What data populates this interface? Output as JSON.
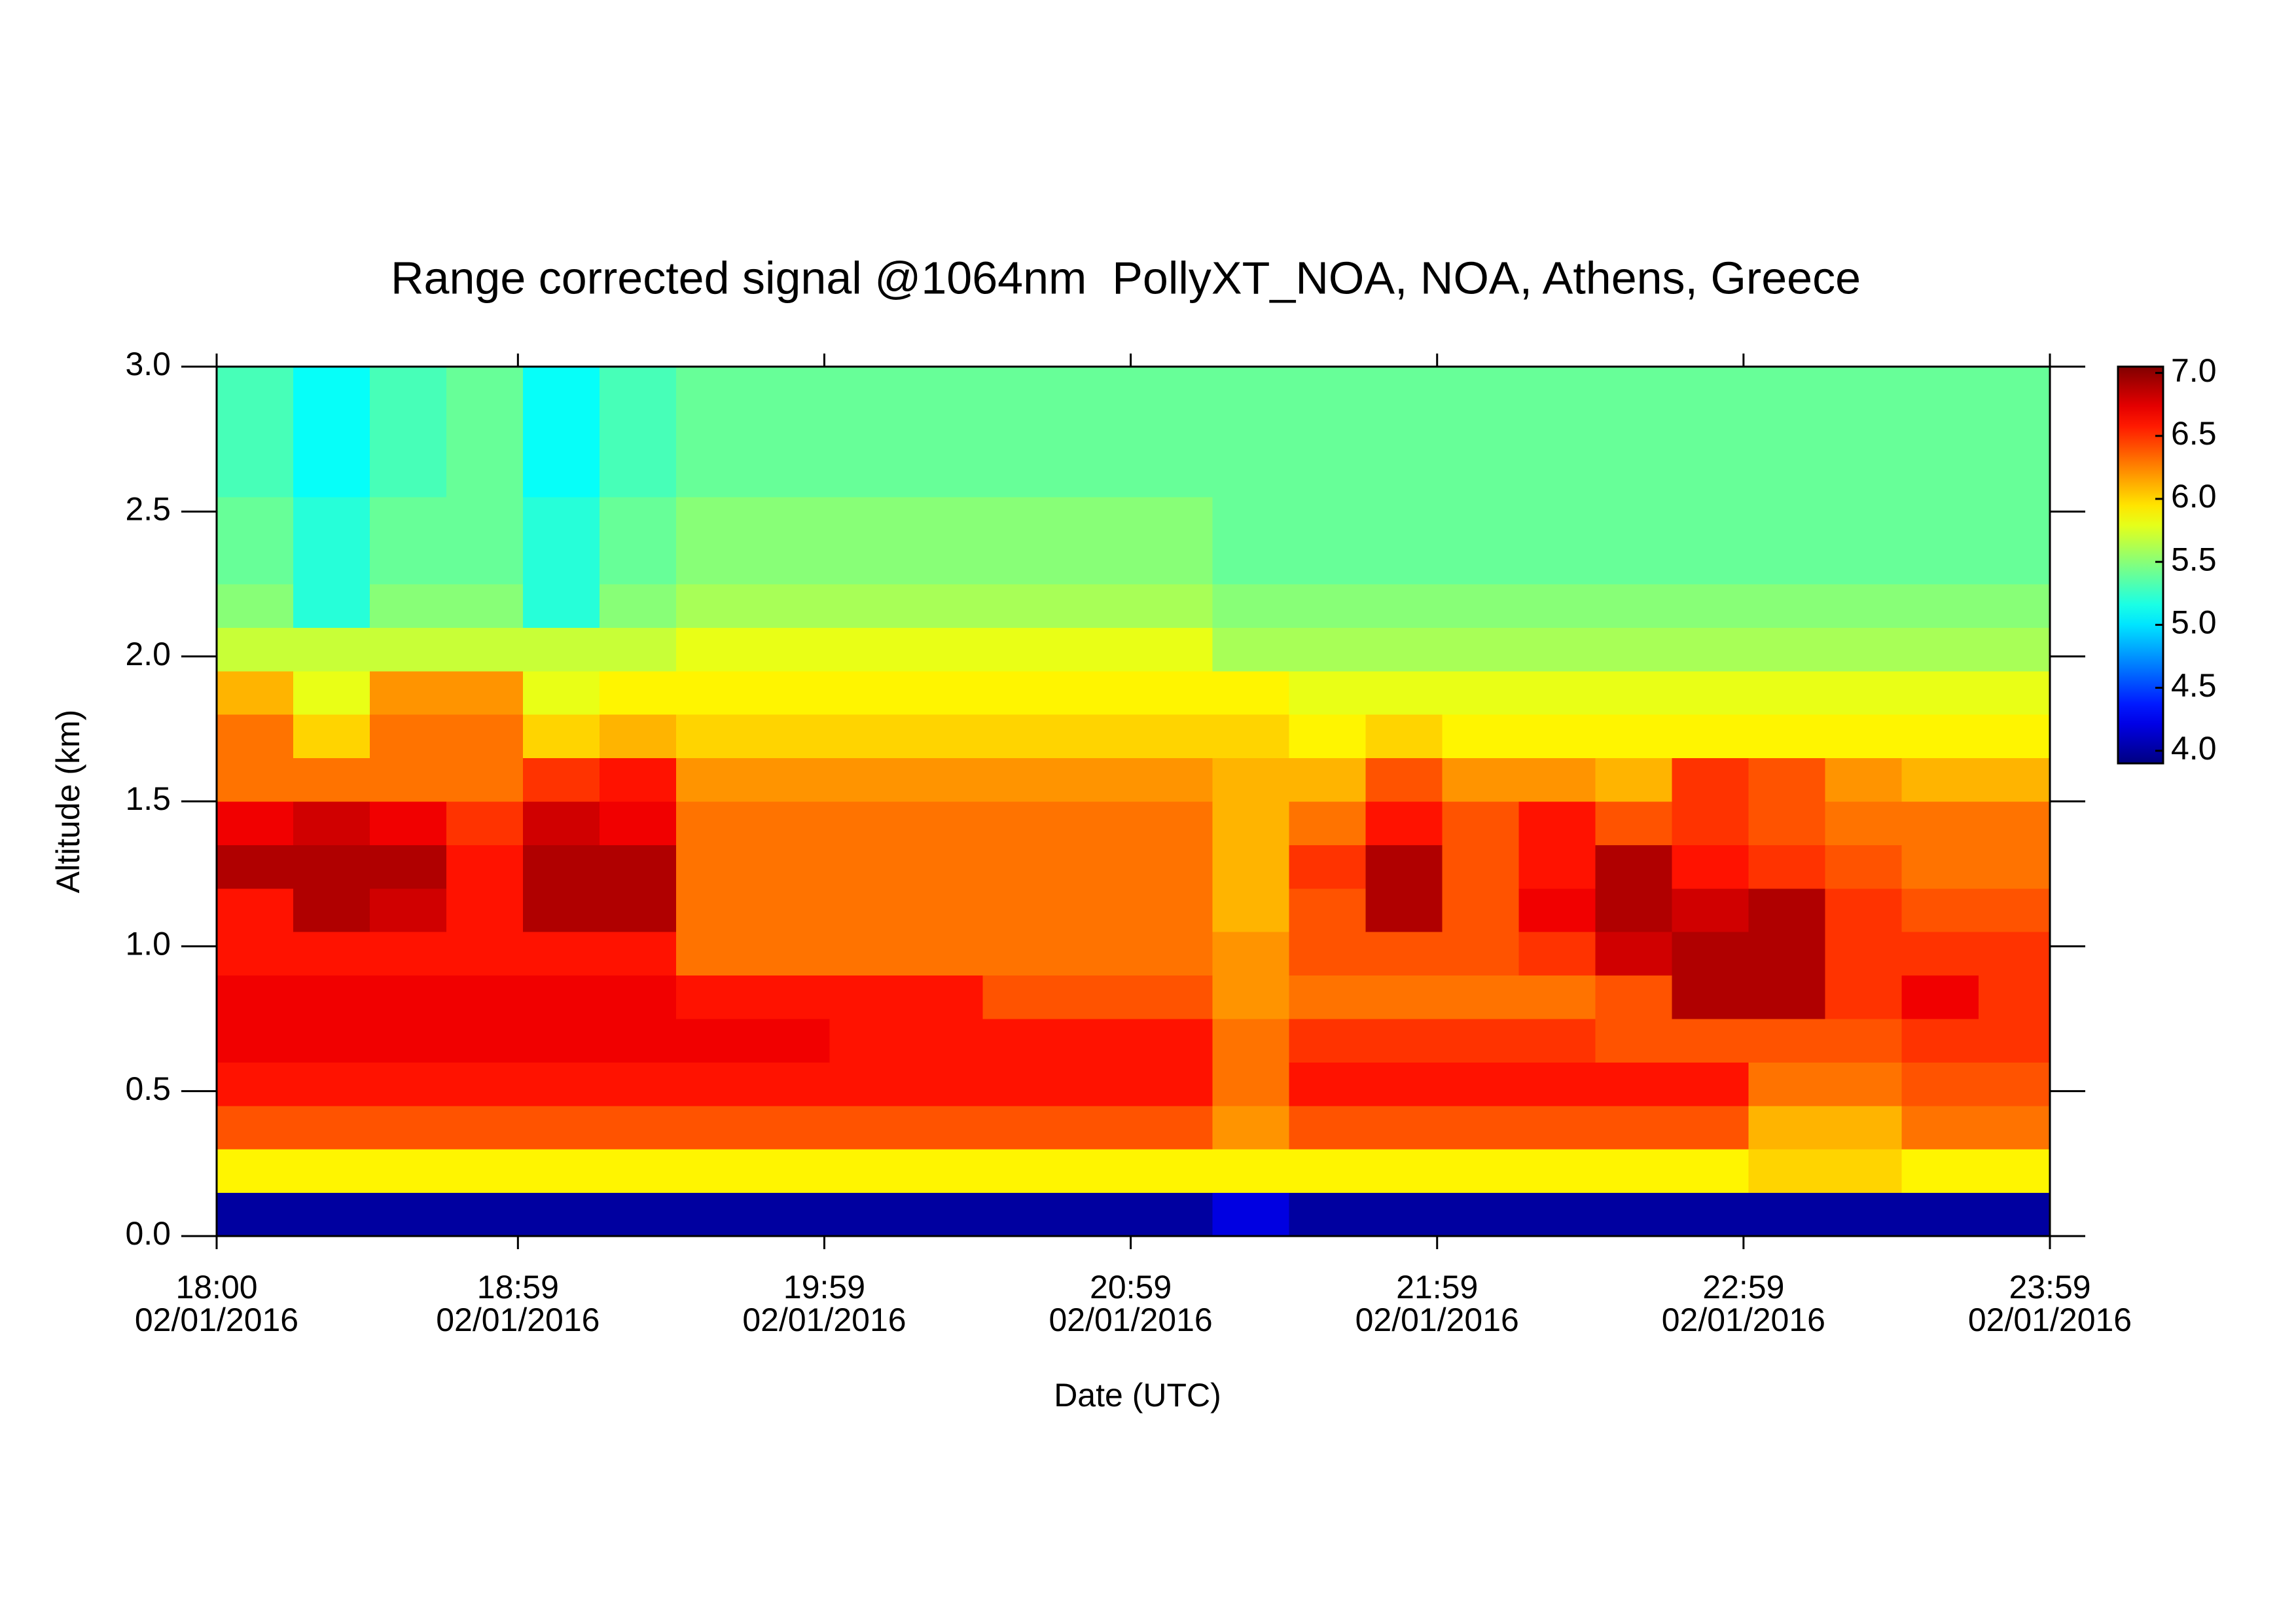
{
  "chart_data": {
    "type": "heatmap",
    "title": "Range corrected signal @1064nm  PollyXT_NOA, NOA, Athens, Greece",
    "xlabel": "Date (UTC)",
    "ylabel": "Altitude (km)",
    "xlim": [
      "18:00",
      "23:59"
    ],
    "xticks": [
      {
        "value": "18:00",
        "label": [
          "18:00",
          "02/01/2016"
        ]
      },
      {
        "value": "18:59",
        "label": [
          "18:59",
          "02/01/2016"
        ]
      },
      {
        "value": "19:59",
        "label": [
          "19:59",
          "02/01/2016"
        ]
      },
      {
        "value": "20:59",
        "label": [
          "20:59",
          "02/01/2016"
        ]
      },
      {
        "value": "21:59",
        "label": [
          "21:59",
          "02/01/2016"
        ]
      },
      {
        "value": "22:59",
        "label": [
          "22:59",
          "02/01/2016"
        ]
      },
      {
        "value": "23:59",
        "label": [
          "23:59",
          "02/01/2016"
        ]
      }
    ],
    "ylim": [
      0,
      3.0
    ],
    "yticks": [
      {
        "value": 0,
        "label": "0.0"
      },
      0.5,
      {
        "value": 1,
        "label": "1.0"
      },
      1.5,
      {
        "value": 2,
        "label": "2.0"
      },
      2.5,
      {
        "value": 3,
        "label": "3.0"
      }
    ],
    "clim": [
      3.9,
      7.05
    ],
    "cticks": [
      {
        "value": 4,
        "label": "4.0"
      },
      4.5,
      {
        "value": 5,
        "label": "5.0"
      },
      5.5,
      {
        "value": 6,
        "label": "6.0"
      },
      6.5,
      {
        "value": 7,
        "label": "7.0"
      }
    ],
    "colormap": "jet",
    "x": [
      "18:00",
      "18:15",
      "18:30",
      "18:45",
      "19:00",
      "19:15",
      "19:30",
      "19:45",
      "20:00",
      "20:15",
      "20:30",
      "20:45",
      "21:00",
      "21:15",
      "21:30",
      "21:45",
      "22:00",
      "22:15",
      "22:30",
      "22:45",
      "23:00",
      "23:15",
      "23:30",
      "23:45"
    ],
    "y": [
      0,
      0.15,
      0.3,
      0.45,
      0.6,
      0.75,
      0.9,
      1.05,
      1.2,
      1.35,
      1.5,
      1.65,
      1.8,
      1.95,
      2.1,
      2.25,
      2.4,
      2.55,
      2.7,
      2.85
    ],
    "z": [
      [
        4.0,
        4.0,
        4.0,
        4.0,
        4.0,
        4.0,
        4.0,
        4.0,
        4.0,
        4.0,
        4.0,
        4.0,
        4.0,
        4.2,
        4.0,
        4.0,
        4.0,
        4.0,
        4.0,
        4.0,
        4.0,
        4.0,
        4.0,
        4.0
      ],
      [
        5.9,
        5.9,
        5.9,
        5.9,
        5.9,
        5.9,
        5.9,
        5.9,
        5.9,
        5.9,
        5.9,
        5.9,
        5.9,
        5.9,
        5.9,
        5.9,
        5.9,
        5.9,
        5.9,
        5.9,
        6.0,
        6.0,
        5.9,
        5.9
      ],
      [
        6.4,
        6.4,
        6.4,
        6.4,
        6.4,
        6.4,
        6.4,
        6.4,
        6.4,
        6.4,
        6.4,
        6.4,
        6.4,
        6.2,
        6.4,
        6.4,
        6.4,
        6.4,
        6.4,
        6.4,
        6.1,
        6.1,
        6.3,
        6.3
      ],
      [
        6.6,
        6.6,
        6.6,
        6.6,
        6.6,
        6.6,
        6.6,
        6.6,
        6.6,
        6.6,
        6.6,
        6.6,
        6.6,
        6.3,
        6.6,
        6.6,
        6.6,
        6.6,
        6.6,
        6.6,
        6.3,
        6.3,
        6.4,
        6.4
      ],
      [
        6.7,
        6.7,
        6.7,
        6.7,
        6.7,
        6.7,
        6.7,
        6.7,
        6.6,
        6.6,
        6.6,
        6.6,
        6.6,
        6.3,
        6.5,
        6.5,
        6.5,
        6.5,
        6.4,
        6.4,
        6.4,
        6.4,
        6.5,
        6.5
      ],
      [
        6.7,
        6.7,
        6.7,
        6.7,
        6.7,
        6.7,
        6.6,
        6.6,
        6.6,
        6.6,
        6.4,
        6.4,
        6.4,
        6.2,
        6.3,
        6.3,
        6.3,
        6.3,
        6.4,
        6.9,
        6.9,
        6.5,
        6.7,
        6.5
      ],
      [
        6.6,
        6.6,
        6.6,
        6.6,
        6.6,
        6.6,
        6.3,
        6.3,
        6.3,
        6.3,
        6.3,
        6.3,
        6.3,
        6.2,
        6.4,
        6.4,
        6.4,
        6.5,
        6.8,
        6.9,
        6.9,
        6.5,
        6.5,
        6.5
      ],
      [
        6.6,
        6.9,
        6.8,
        6.6,
        6.9,
        6.9,
        6.3,
        6.3,
        6.3,
        6.3,
        6.3,
        6.3,
        6.3,
        6.1,
        6.4,
        6.9,
        6.4,
        6.7,
        6.9,
        6.8,
        6.9,
        6.5,
        6.4,
        6.4
      ],
      [
        6.9,
        6.9,
        6.9,
        6.6,
        6.9,
        6.9,
        6.3,
        6.3,
        6.3,
        6.3,
        6.3,
        6.3,
        6.3,
        6.1,
        6.5,
        6.9,
        6.4,
        6.6,
        6.9,
        6.6,
        6.5,
        6.4,
        6.3,
        6.3
      ],
      [
        6.7,
        6.8,
        6.7,
        6.5,
        6.8,
        6.7,
        6.3,
        6.3,
        6.3,
        6.3,
        6.3,
        6.3,
        6.3,
        6.1,
        6.3,
        6.6,
        6.4,
        6.6,
        6.4,
        6.5,
        6.4,
        6.3,
        6.3,
        6.3
      ],
      [
        6.3,
        6.3,
        6.3,
        6.3,
        6.5,
        6.6,
        6.2,
        6.2,
        6.2,
        6.2,
        6.2,
        6.2,
        6.2,
        6.1,
        6.1,
        6.4,
        6.2,
        6.2,
        6.1,
        6.5,
        6.4,
        6.2,
        6.1,
        6.1
      ],
      [
        6.3,
        6.0,
        6.3,
        6.3,
        6.0,
        6.1,
        6.0,
        6.0,
        6.0,
        6.0,
        6.0,
        6.0,
        6.0,
        6.0,
        5.9,
        6.0,
        5.9,
        5.9,
        5.9,
        5.9,
        5.9,
        5.9,
        5.9,
        5.9
      ],
      [
        6.1,
        5.8,
        6.2,
        6.2,
        5.8,
        5.9,
        5.9,
        5.9,
        5.9,
        5.9,
        5.9,
        5.9,
        5.9,
        5.9,
        5.8,
        5.8,
        5.8,
        5.8,
        5.8,
        5.8,
        5.8,
        5.8,
        5.8,
        5.8
      ],
      [
        5.7,
        5.7,
        5.7,
        5.7,
        5.7,
        5.7,
        5.8,
        5.8,
        5.8,
        5.8,
        5.8,
        5.8,
        5.8,
        5.6,
        5.6,
        5.6,
        5.6,
        5.6,
        5.6,
        5.6,
        5.6,
        5.6,
        5.6,
        5.6
      ],
      [
        5.5,
        5.2,
        5.5,
        5.5,
        5.2,
        5.5,
        5.6,
        5.6,
        5.6,
        5.6,
        5.6,
        5.6,
        5.6,
        5.5,
        5.5,
        5.5,
        5.5,
        5.5,
        5.5,
        5.5,
        5.5,
        5.5,
        5.5,
        5.5
      ],
      [
        5.4,
        5.2,
        5.4,
        5.4,
        5.2,
        5.4,
        5.5,
        5.5,
        5.5,
        5.5,
        5.5,
        5.5,
        5.5,
        5.4,
        5.4,
        5.4,
        5.4,
        5.4,
        5.4,
        5.4,
        5.4,
        5.4,
        5.4,
        5.4
      ],
      [
        5.4,
        5.2,
        5.4,
        5.4,
        5.2,
        5.4,
        5.5,
        5.5,
        5.5,
        5.5,
        5.5,
        5.5,
        5.5,
        5.4,
        5.4,
        5.4,
        5.4,
        5.4,
        5.4,
        5.4,
        5.4,
        5.4,
        5.4,
        5.4
      ],
      [
        5.3,
        5.1,
        5.3,
        5.4,
        5.1,
        5.3,
        5.4,
        5.4,
        5.4,
        5.4,
        5.4,
        5.4,
        5.4,
        5.4,
        5.4,
        5.4,
        5.4,
        5.4,
        5.4,
        5.4,
        5.4,
        5.4,
        5.4,
        5.4
      ],
      [
        5.3,
        5.1,
        5.3,
        5.4,
        5.1,
        5.3,
        5.4,
        5.4,
        5.4,
        5.4,
        5.4,
        5.4,
        5.4,
        5.4,
        5.4,
        5.4,
        5.4,
        5.4,
        5.4,
        5.4,
        5.4,
        5.4,
        5.4,
        5.4
      ],
      [
        5.3,
        5.1,
        5.3,
        5.4,
        5.1,
        5.3,
        5.4,
        5.4,
        5.4,
        5.4,
        5.4,
        5.4,
        5.4,
        5.4,
        5.4,
        5.4,
        5.4,
        5.4,
        5.4,
        5.4,
        5.4,
        5.4,
        5.4,
        5.4
      ]
    ]
  }
}
